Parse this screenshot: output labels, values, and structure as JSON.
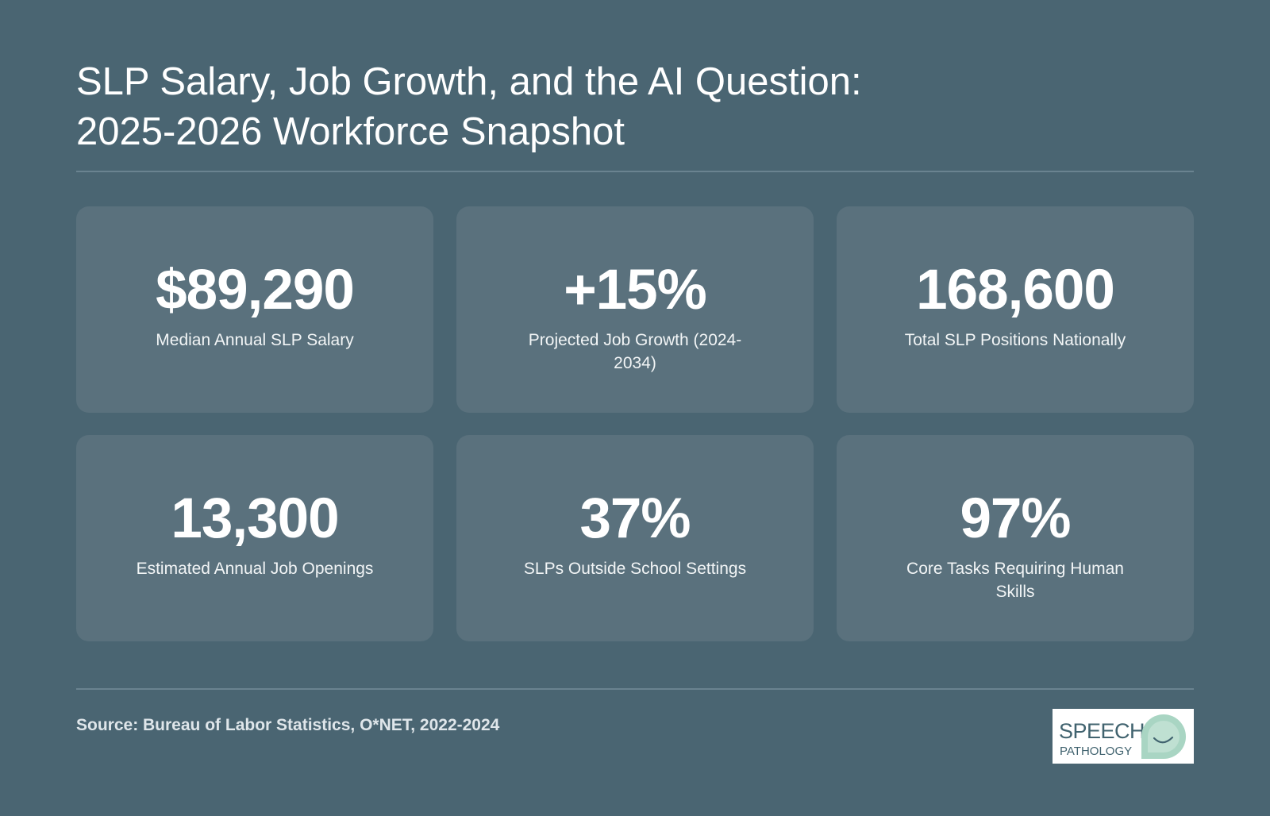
{
  "title": {
    "line1": "SLP Salary, Job Growth, and the AI Question:",
    "line2": "2025-2026 Workforce Snapshot"
  },
  "stats": [
    {
      "value": "$89,290",
      "label": "Median Annual SLP Salary"
    },
    {
      "value": "+15%",
      "label": "Projected Job Growth (2024-2034)"
    },
    {
      "value": "168,600",
      "label": "Total SLP Positions Nationally"
    },
    {
      "value": "13,300",
      "label": "Estimated Annual Job Openings"
    },
    {
      "value": "37%",
      "label": "SLPs Outside School Settings"
    },
    {
      "value": "97%",
      "label": "Core Tasks Requiring Human Skills"
    }
  ],
  "footer": {
    "source": "Source: Bureau of Labor Statistics, O*NET, 2022-2024"
  },
  "logo": {
    "line1": "SPEECH",
    "line2": "PATHOLOGY",
    "icon": "speech-bubble-smile-icon"
  },
  "colors": {
    "background": "#4a6572",
    "card": "#5a717d",
    "logo_accent": "#a9d5c3"
  }
}
